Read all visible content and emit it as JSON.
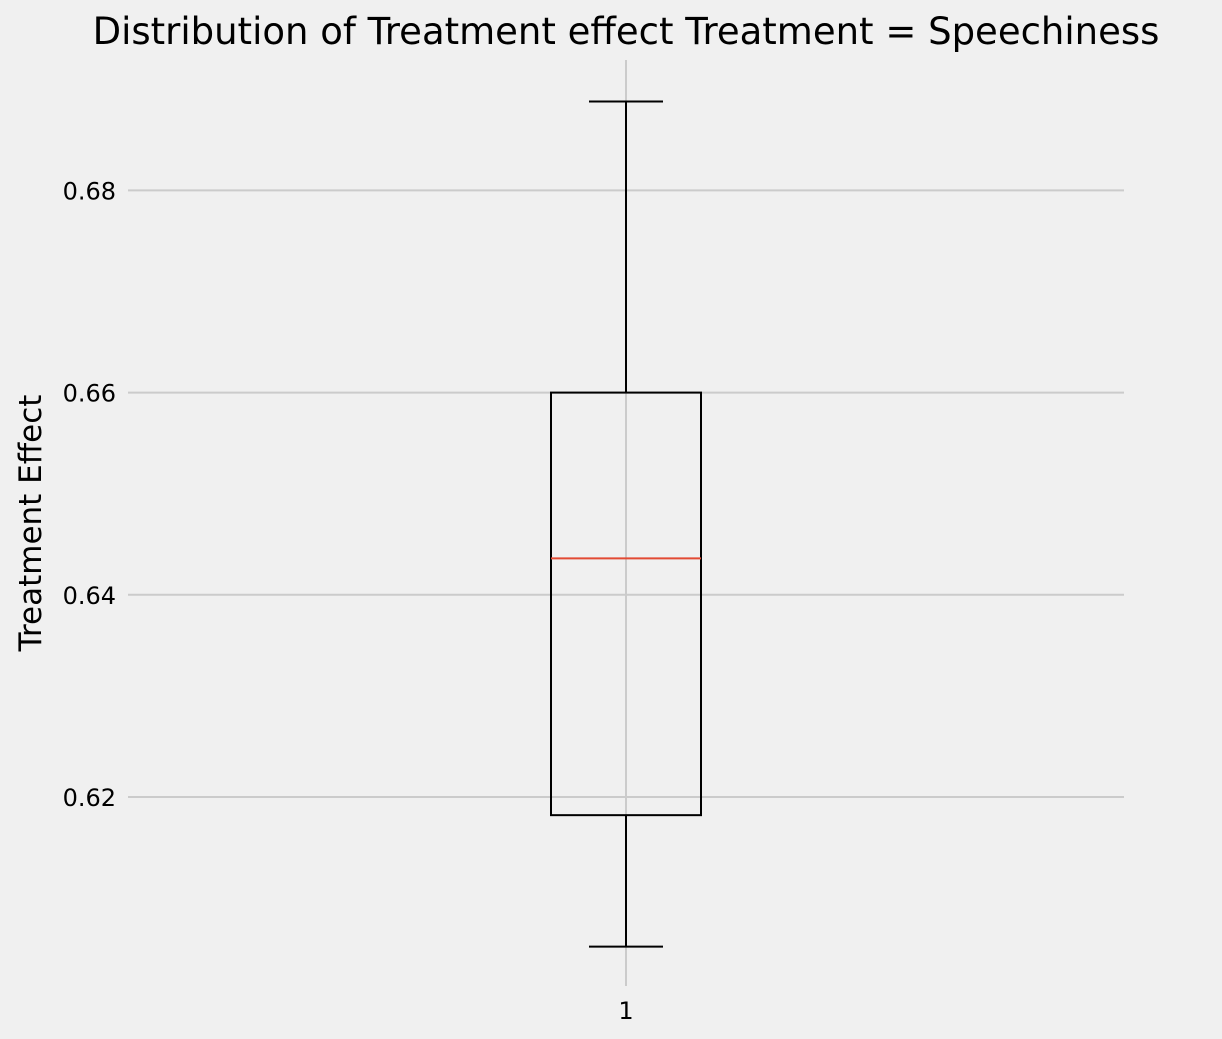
{
  "chart_data": {
    "type": "box",
    "title": "Distribution of Treatment effect Treatment = Speechiness",
    "xlabel": "",
    "ylabel": "Treatment Effect",
    "categories": [
      "1"
    ],
    "boxes": [
      {
        "category": "1",
        "whisker_low": 0.6052,
        "q1": 0.6182,
        "median": 0.6436,
        "q3": 0.66,
        "whisker_high": 0.6888
      }
    ],
    "yticks": [
      0.62,
      0.64,
      0.66,
      0.68
    ],
    "ytick_labels": [
      "0.62",
      "0.64",
      "0.66",
      "0.68"
    ],
    "ylim": [
      0.6013,
      0.6929
    ],
    "grid": true,
    "colors": {
      "background": "#f0f0f0",
      "grid": "#cbcbcb",
      "box": "#000000",
      "median": "#e24a33"
    }
  }
}
